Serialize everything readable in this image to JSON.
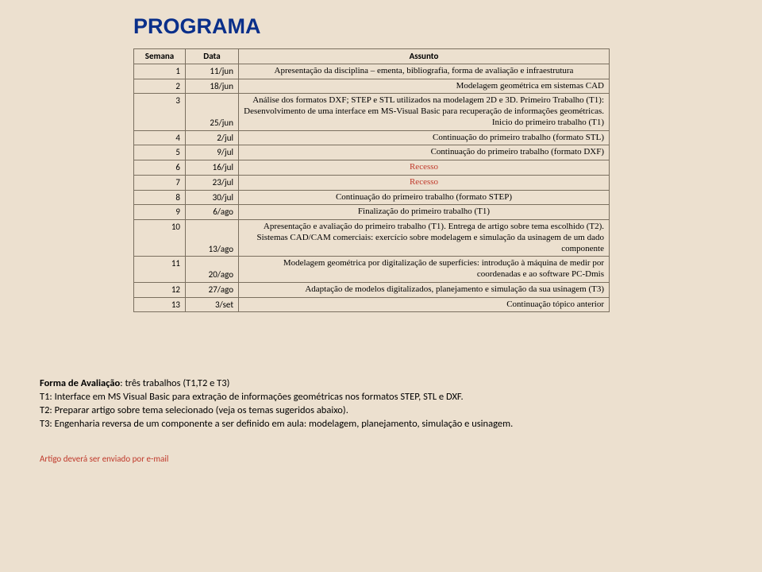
{
  "title": "PROGRAMA",
  "headers": {
    "semana": "Semana",
    "data": "Data",
    "assunto": "Assunto"
  },
  "rows": [
    {
      "wk": "1",
      "dt": "11/jun",
      "subj": "Apresentação da disciplina – ementa, bibliografia, forma de avaliação e infraestrutura",
      "align": "center"
    },
    {
      "wk": "2",
      "dt": "18/jun",
      "subj": "Modelagem geométrica em sistemas CAD",
      "align": "right"
    },
    {
      "wk": "3",
      "dt": "25/jun",
      "subj": "Análise dos formatos DXF; STEP e STL utilizados na modelagem 2D e 3D. Primeiro Trabalho (T1): Desenvolvimento de uma interface em MS-Visual Basic para recuperação de informações geométricas. Inicio do primeiro trabalho (T1)",
      "align": "right"
    },
    {
      "wk": "4",
      "dt": "2/jul",
      "subj": "Continuação do primeiro trabalho (formato STL)",
      "align": "right"
    },
    {
      "wk": "5",
      "dt": "9/jul",
      "subj": "Continuação do primeiro trabalho (formato DXF)",
      "align": "right"
    },
    {
      "wk": "6",
      "dt": "16/jul",
      "subj": "Recesso",
      "align": "center",
      "recess": true
    },
    {
      "wk": "7",
      "dt": "23/jul",
      "subj": "Recesso",
      "align": "center",
      "recess": true
    },
    {
      "wk": "8",
      "dt": "30/jul",
      "subj": "Continuação do primeiro trabalho (formato STEP)",
      "align": "center"
    },
    {
      "wk": "9",
      "dt": "6/ago",
      "subj": "Finalização do primeiro trabalho (T1)",
      "align": "center"
    },
    {
      "wk": "10",
      "dt": "13/ago",
      "subj": "Apresentação e avaliação do primeiro trabalho (T1). Entrega de artigo sobre tema escolhido (T2). Sistemas CAD/CAM comerciais: exercício sobre modelagem e simulação da usinagem de um dado componente",
      "align": "right"
    },
    {
      "wk": "11",
      "dt": "20/ago",
      "subj": "Modelagem geométrica por digitalização de superfícies: introdução à máquina de medir por coordenadas e ao software PC-Dmis",
      "align": "right"
    },
    {
      "wk": "12",
      "dt": "27/ago",
      "subj": "Adaptação de modelos digitalizados, planejamento e simulação da sua usinagem (T3)",
      "align": "right"
    },
    {
      "wk": "13",
      "dt": "3/set",
      "subj": "Continuação tópico anterior",
      "align": "right"
    }
  ],
  "footer": {
    "line1_bold": "Forma de Avaliação",
    "line1_rest": ": três trabalhos (T1,T2 e T3)",
    "line2": "T1: Interface em MS Visual Basic para extração de informações geométricas nos formatos STEP, STL e DXF.",
    "line3": "T2: Preparar artigo sobre tema selecionado (veja os temas sugeridos abaixo).",
    "line4": "T3: Engenharia reversa de um componente a ser definido em aula: modelagem, planejamento, simulação e usinagem.",
    "artigo": "Artigo deverá ser enviado por e-mail"
  }
}
